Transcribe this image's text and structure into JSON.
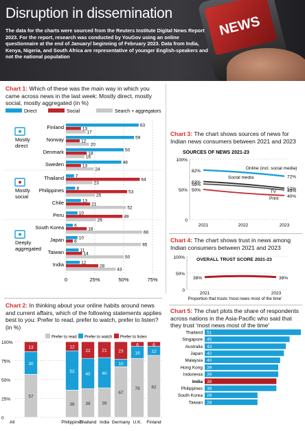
{
  "header": {
    "title": "Disruption in dissemination",
    "intro": "The data for the charts were sourced from the Reuters Institute Digital News Report 2023. For the report, research was conducted by YouGov using an online questionnaire at the end of January/ beginning of February 2023. Data from India, Kenya, Nigeria, and South Africa are representative of younger English-speakers and not the national population",
    "photo_text": "NEWS"
  },
  "colors": {
    "blue": "#1a9fd8",
    "red": "#c0262d",
    "gray": "#c8c8c8",
    "dark_red": "#b01e23"
  },
  "chart1": {
    "label": "Chart 1:",
    "question": "Which of these was the main way in which you came across news in the last week: Mostly direct, mostly social, mostly aggregated (in %)",
    "groups": [
      {
        "name": "Mostly direct",
        "icon": "monitor-icon"
      },
      {
        "name": "Mostly social",
        "icon": "social-network-icon"
      },
      {
        "name": "Deeply aggregated",
        "icon": "aggregator-icon"
      }
    ]
  },
  "chart2": {
    "label": "Chart 2:",
    "question": "In thinking about your online habits around news and current affairs, which of the following statements applies best to you: Prefer to read, prefer to watch, prefer to listen? (in %)"
  },
  "chart3": {
    "label": "Chart 3:",
    "question": "The chart shows sources of news for Indian news consumers between 2021 and 2023",
    "subtitle": "SOURCES OF NEWS 2021-23"
  },
  "chart4": {
    "label": "Chart 4:",
    "question": "The chart shows trust in news among Indian consumers between 2021 and 2023",
    "subtitle": "OVERALL TRUST SCORE 2021-23"
  },
  "chart5": {
    "label": "Chart 5:",
    "question": "The chart plots the share of respondents across nations in the Asia-Pacific who said that they trust 'most news most of the time'"
  },
  "chart_data": [
    {
      "type": "bar",
      "orientation": "horizontal",
      "legend": [
        "Direct",
        "Social",
        "Search + aggregators"
      ],
      "categories": [
        "Finland",
        "Norway",
        "Denmark",
        "Sweden",
        "Thailand",
        "Philippines",
        "Chile",
        "Peru",
        "South Korea",
        "Japan",
        "Taiwan",
        "India"
      ],
      "series": [
        {
          "name": "Direct",
          "values": [
            63,
            59,
            50,
            48,
            7,
            8,
            13,
            10,
            6,
            10,
            11,
            12
          ]
        },
        {
          "name": "Social",
          "values": [
            13,
            12,
            18,
            13,
            64,
            53,
            21,
            49,
            18,
            6,
            14,
            28
          ]
        },
        {
          "name": "Search + aggregators",
          "values": [
            17,
            20,
            16,
            24,
            23,
            25,
            52,
            26,
            66,
            65,
            50,
            43
          ]
        }
      ],
      "xlim": [
        0,
        75
      ],
      "xticks": [
        "0",
        "25%",
        "50%",
        "75%"
      ]
    },
    {
      "type": "bar",
      "stacked": true,
      "legend": [
        "Prefer to read",
        "Prefer to watch",
        "Prefer to listen"
      ],
      "categories": [
        "All",
        "Philippines",
        "Thailand",
        "India",
        "Germany",
        "U.K.",
        "Finland"
      ],
      "series": [
        {
          "name": "Prefer to read",
          "values": [
            57,
            36,
            38,
            39,
            67,
            78,
            82
          ]
        },
        {
          "name": "Prefer to watch",
          "values": [
            30,
            52,
            40,
            40,
            10,
            16,
            12
          ]
        },
        {
          "name": "Prefer to listen",
          "values": [
            13,
            12,
            22,
            21,
            23,
            6,
            6
          ]
        }
      ],
      "ylim": [
        0,
        100
      ],
      "yticks": [
        "0",
        "25%",
        "50%",
        "75%",
        "100%"
      ]
    },
    {
      "type": "line",
      "title": "SOURCES OF NEWS 2021-23",
      "x": [
        "2021",
        "2022",
        "2023"
      ],
      "series": [
        {
          "name": "Online (incl. social media)",
          "values": [
            82,
            null,
            72
          ]
        },
        {
          "name": "Social media",
          "values": [
            63,
            null,
            52
          ]
        },
        {
          "name": "TV",
          "values": [
            59,
            null,
            49
          ]
        },
        {
          "name": "Print",
          "values": [
            50,
            null,
            40
          ]
        }
      ],
      "ylim": [
        0,
        100
      ],
      "yticks": [
        "0",
        "50%",
        "100%"
      ]
    },
    {
      "type": "line",
      "title": "OVERALL TRUST SCORE 2021-23",
      "x": [
        "2021",
        "2023"
      ],
      "series": [
        {
          "name": "",
          "values": [
            38,
            38
          ]
        }
      ],
      "xlabel": "Proportion that trusts 'most news most of the time'",
      "ylim": [
        0,
        100
      ],
      "yticks": [
        "0",
        "50%",
        "100%"
      ]
    },
    {
      "type": "bar",
      "orientation": "horizontal",
      "categories": [
        "Thailand",
        "Singapore",
        "Australia",
        "Japan",
        "Malaysia",
        "Hong Kong",
        "Indonesia",
        "India",
        "Philippines",
        "South Korea",
        "Taiwan"
      ],
      "values": [
        51,
        45,
        43,
        42,
        40,
        39,
        39,
        38,
        38,
        28,
        28
      ],
      "highlight": "India"
    }
  ]
}
